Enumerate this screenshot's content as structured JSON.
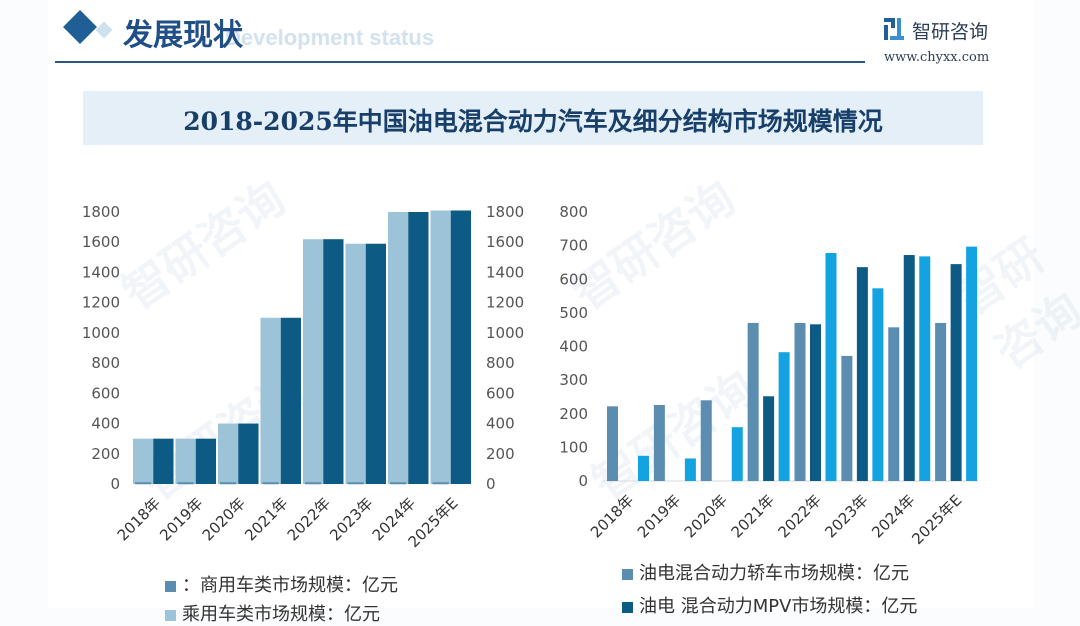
{
  "header": {
    "section_title": "发展现状",
    "section_subtitle": "Development status",
    "logo_name": "智研咨询",
    "logo_url": "www.chyxx.com"
  },
  "banner": {
    "title": "2018-2025年中国油电混合动力汽车及细分结构市场规模情况"
  },
  "watermark": "智研咨询",
  "colors": {
    "light": "#9dc3d8",
    "dark": "#0d5a85",
    "steel": "#5b8db0",
    "bright": "#12a3e0",
    "navy": "#1f5f96"
  },
  "chart_data": [
    {
      "type": "bar",
      "title": "",
      "xlabel": "",
      "ylabel": "",
      "ylim": [
        0,
        1800
      ],
      "yticks": [
        "0",
        "200",
        "400",
        "600",
        "800",
        "1000",
        "1200",
        "1400",
        "1600",
        "1800"
      ],
      "y2ticks": [
        "0",
        "200",
        "400",
        "600",
        "800",
        "1000",
        "1200",
        "1400",
        "1600",
        "1800"
      ],
      "categories": [
        "2018年",
        "2019年",
        "2020年",
        "2021年",
        "2022年",
        "2023年",
        "2024年",
        "2025年E"
      ],
      "series": [
        {
          "name": "：商用车类市场规模：亿元",
          "color": "#5b8db0",
          "values": [
            5,
            5,
            5,
            5,
            5,
            5,
            5,
            5
          ]
        },
        {
          "name": "乘用车类市场规模：亿元",
          "color": "#9dc3d8",
          "values": [
            300,
            300,
            400,
            1100,
            1620,
            1590,
            1800,
            1810
          ]
        },
        {
          "color": "#0d5a85",
          "values": [
            300,
            300,
            400,
            1100,
            1620,
            1590,
            1800,
            1810
          ]
        }
      ],
      "legend": "bottom"
    },
    {
      "type": "bar",
      "title": "",
      "xlabel": "",
      "ylabel": "",
      "ylim": [
        0,
        800
      ],
      "yticks": [
        "0",
        "100",
        "200",
        "300",
        "400",
        "500",
        "600",
        "700",
        "800"
      ],
      "categories": [
        "2018年",
        "2019年",
        "2020年",
        "2021年",
        "2022年",
        "2023年",
        "2024年",
        "2025年E"
      ],
      "series": [
        {
          "name": "油电混合动力轿车市场规模：亿元",
          "color": "#5b8db0",
          "values": [
            222,
            226,
            240,
            470,
            470,
            372,
            457,
            470
          ]
        },
        {
          "name": "油电 混合动力MPV市场规模：亿元",
          "color": "#0d5a85",
          "values": [
            0,
            0,
            0,
            252,
            466,
            636,
            672,
            645
          ]
        },
        {
          "color": "#12a3e0",
          "values": [
            75,
            67,
            160,
            383,
            678,
            573,
            668,
            697
          ]
        }
      ],
      "legend": "bottom"
    }
  ]
}
